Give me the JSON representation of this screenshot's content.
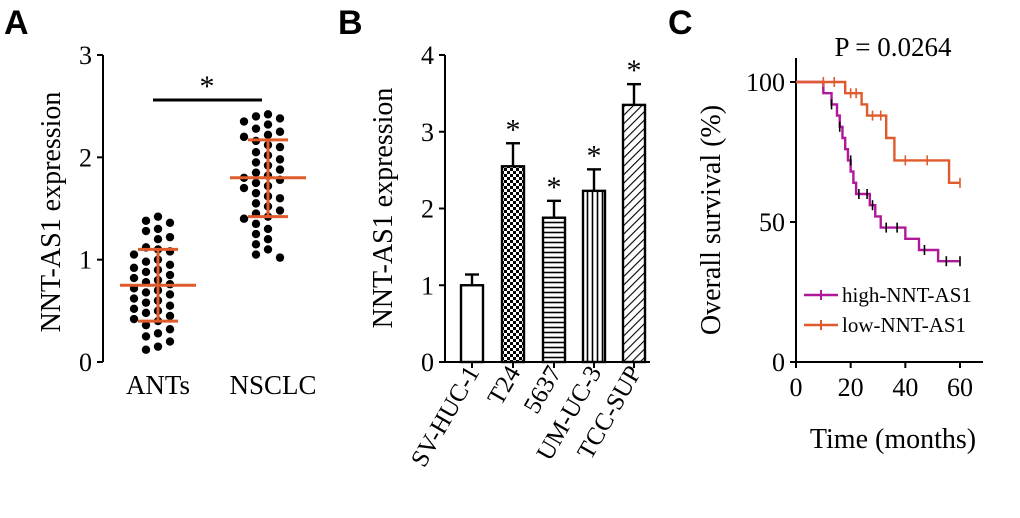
{
  "panels": {
    "A": {
      "letter": "A",
      "ylabel": "NNT-AS1 expression",
      "yticks": [
        "0",
        "1",
        "2",
        "3"
      ],
      "categories": [
        "ANTs",
        "NSCLC"
      ],
      "significance": "*"
    },
    "B": {
      "letter": "B",
      "ylabel": "NNT-AS1 expression",
      "yticks": [
        "0",
        "1",
        "2",
        "3",
        "4"
      ],
      "categories": [
        "SV-HUC-1",
        "T24",
        "5637",
        "UM-UC-3",
        "TCC-SUP"
      ],
      "significance": "*"
    },
    "C": {
      "letter": "C",
      "pvalue": "P = 0.0264",
      "ylabel": "Overall survival (%)",
      "xlabel": "Time (months)",
      "yticks": [
        "0",
        "50",
        "100"
      ],
      "xticks": [
        "0",
        "20",
        "40",
        "60"
      ],
      "legend": [
        "high-NNT-AS1",
        "low-NNT-AS1"
      ]
    }
  },
  "colors": {
    "orange": "#e05a2b",
    "magenta": "#b0189a",
    "black": "#000000"
  },
  "chart_data": [
    {
      "type": "scatter",
      "panel": "A",
      "ylabel": "NNT-AS1 expression",
      "ylim": [
        0,
        3
      ],
      "yticks": [
        0,
        1,
        2,
        3
      ],
      "categories": [
        "ANTs",
        "NSCLC"
      ],
      "summary": [
        {
          "category": "ANTs",
          "mean": 0.75,
          "sd_low": 0.4,
          "sd_high": 1.1
        },
        {
          "category": "NSCLC",
          "mean": 1.8,
          "sd_low": 1.42,
          "sd_high": 2.17
        }
      ],
      "points": [
        {
          "category": "ANTs",
          "values": [
            1.42,
            1.38,
            1.36,
            1.3,
            1.28,
            1.22,
            1.2,
            1.12,
            1.1,
            1.08,
            1.05,
            1.0,
            0.98,
            0.95,
            0.92,
            0.9,
            0.88,
            0.85,
            0.82,
            0.8,
            0.78,
            0.76,
            0.72,
            0.7,
            0.68,
            0.66,
            0.62,
            0.6,
            0.58,
            0.55,
            0.52,
            0.5,
            0.48,
            0.45,
            0.42,
            0.4,
            0.36,
            0.32,
            0.28,
            0.25,
            0.2,
            0.15,
            0.12
          ]
        },
        {
          "category": "NSCLC",
          "values": [
            2.42,
            2.4,
            2.38,
            2.35,
            2.32,
            2.28,
            2.25,
            2.22,
            2.2,
            2.16,
            2.12,
            2.1,
            2.05,
            2.02,
            1.98,
            1.95,
            1.92,
            1.88,
            1.85,
            1.82,
            1.8,
            1.78,
            1.75,
            1.72,
            1.7,
            1.65,
            1.62,
            1.6,
            1.55,
            1.52,
            1.48,
            1.45,
            1.42,
            1.4,
            1.35,
            1.3,
            1.25,
            1.2,
            1.15,
            1.1,
            1.05,
            1.02
          ]
        }
      ],
      "annotations": [
        "*"
      ]
    },
    {
      "type": "bar",
      "panel": "B",
      "ylabel": "NNT-AS1 expression",
      "ylim": [
        0,
        4
      ],
      "yticks": [
        0,
        1,
        2,
        3,
        4
      ],
      "categories": [
        "SV-HUC-1",
        "T24",
        "5637",
        "UM-UC-3",
        "TCC-SUP"
      ],
      "values": [
        1.0,
        2.55,
        1.88,
        2.23,
        3.35
      ],
      "errors": [
        0.14,
        0.3,
        0.22,
        0.28,
        0.27
      ],
      "patterns": [
        "none",
        "checker",
        "horizontal",
        "vertical",
        "diagonal"
      ],
      "significance": [
        "",
        "*",
        "*",
        "*",
        "*"
      ]
    },
    {
      "type": "line",
      "panel": "C",
      "title": "P = 0.0264",
      "xlabel": "Time (months)",
      "ylabel": "Overall survival (%)",
      "xlim": [
        0,
        65
      ],
      "ylim": [
        0,
        100
      ],
      "xticks": [
        0,
        20,
        40,
        60
      ],
      "yticks": [
        0,
        50,
        100
      ],
      "legend_position": "bottom-right",
      "series": [
        {
          "name": "high-NNT-AS1",
          "color": "#b0189a",
          "steps": [
            [
              0,
              100
            ],
            [
              10,
              100
            ],
            [
              10,
              96
            ],
            [
              13,
              96
            ],
            [
              13,
              92
            ],
            [
              15,
              92
            ],
            [
              15,
              88
            ],
            [
              16,
              88
            ],
            [
              16,
              84
            ],
            [
              17,
              84
            ],
            [
              17,
              80
            ],
            [
              18,
              80
            ],
            [
              18,
              76
            ],
            [
              19,
              76
            ],
            [
              19,
              72
            ],
            [
              20,
              72
            ],
            [
              20,
              68
            ],
            [
              21,
              68
            ],
            [
              21,
              64
            ],
            [
              22,
              64
            ],
            [
              22,
              60
            ],
            [
              27,
              60
            ],
            [
              27,
              56
            ],
            [
              29,
              56
            ],
            [
              29,
              52
            ],
            [
              31,
              52
            ],
            [
              31,
              48
            ],
            [
              40,
              48
            ],
            [
              40,
              44
            ],
            [
              45,
              44
            ],
            [
              45,
              40
            ],
            [
              52,
              40
            ],
            [
              52,
              36
            ],
            [
              60,
              36
            ]
          ],
          "censored": [
            [
              13,
              92
            ],
            [
              16,
              84
            ],
            [
              20,
              72
            ],
            [
              23,
              60
            ],
            [
              26,
              60
            ],
            [
              28,
              56
            ],
            [
              33,
              48
            ],
            [
              37,
              48
            ],
            [
              47,
              40
            ],
            [
              55,
              36
            ],
            [
              60,
              36
            ]
          ]
        },
        {
          "name": "low-NNT-AS1",
          "color": "#e05a2b",
          "steps": [
            [
              0,
              100
            ],
            [
              18,
              100
            ],
            [
              18,
              96
            ],
            [
              24,
              96
            ],
            [
              24,
              92
            ],
            [
              26,
              92
            ],
            [
              26,
              88
            ],
            [
              33,
              88
            ],
            [
              33,
              80
            ],
            [
              36,
              80
            ],
            [
              36,
              72
            ],
            [
              56,
              72
            ],
            [
              56,
              64
            ],
            [
              60,
              64
            ]
          ],
          "censored": [
            [
              10,
              100
            ],
            [
              14,
              100
            ],
            [
              20,
              96
            ],
            [
              22,
              96
            ],
            [
              28,
              88
            ],
            [
              31,
              88
            ],
            [
              40,
              72
            ],
            [
              48,
              72
            ],
            [
              60,
              64
            ]
          ]
        }
      ]
    }
  ]
}
